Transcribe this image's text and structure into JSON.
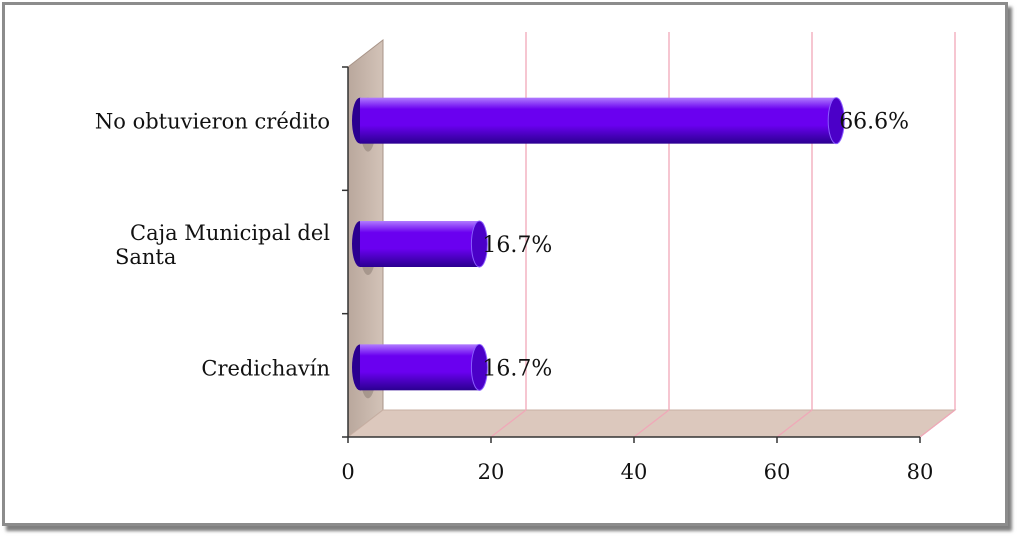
{
  "chart_data": {
    "type": "bar",
    "orientation": "horizontal",
    "style": "3d-cylinder",
    "categories": [
      "Credichavín",
      "Caja Municipal del Santa",
      "No obtuvieron crédito"
    ],
    "category_label_lines": [
      [
        "Credichavín"
      ],
      [
        "Caja Municipal del",
        "Santa"
      ],
      [
        "No obtuvieron crédito"
      ]
    ],
    "values": [
      16.7,
      16.7,
      66.6
    ],
    "data_labels": [
      "16.7%",
      "16.7%",
      "66.6%"
    ],
    "xlim": [
      0,
      80
    ],
    "x_ticks": [
      0,
      20,
      40,
      60,
      80
    ],
    "x_tick_labels": [
      "0",
      "20",
      "40",
      "60",
      "80"
    ],
    "grid": "vertical",
    "legend": "none",
    "title": "",
    "xlabel": "",
    "ylabel": "",
    "colors": {
      "bar": "#6a00f0",
      "bar_highlight": "#b07bff",
      "bar_shadow": "#2a0090",
      "wall": "#c7b6ab",
      "floor": "#dcc8bd",
      "gridline": "#f0a8b8",
      "axis": "#333333"
    }
  }
}
